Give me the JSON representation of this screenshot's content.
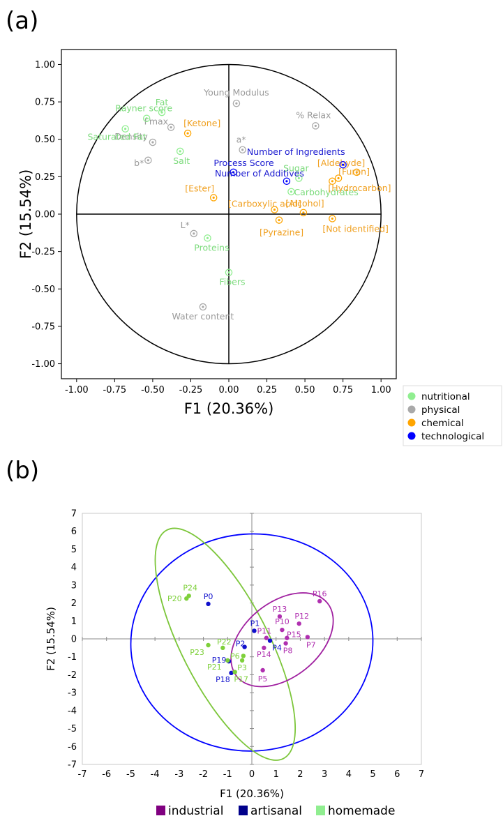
{
  "chart_data": [
    {
      "panel": "(a)",
      "type": "scatter",
      "xlabel": "F1 (20.36%)",
      "ylabel": "F2 (15.54%)",
      "xlim": [
        -1.1,
        1.1
      ],
      "ylim": [
        -1.1,
        1.1
      ],
      "xticks": [
        "-1.00",
        "-0.75",
        "-0.50",
        "-0.25",
        "0.00",
        "0.25",
        "0.50",
        "0.75",
        "1.00"
      ],
      "yticks": [
        "1.00",
        "0.75",
        "0.50",
        "0.25",
        "0.00",
        "-0.25",
        "-0.50",
        "-0.75",
        "-1.00"
      ],
      "legend_placement": "right-outside",
      "legend": [
        {
          "name": "nutritional",
          "color": "#90EE90"
        },
        {
          "name": "physical",
          "color": "#A9A9A9"
        },
        {
          "name": "chemical",
          "color": "#FFA500"
        },
        {
          "name": "technological",
          "color": "#0000FF"
        }
      ],
      "points": [
        {
          "label": "Young Modulus",
          "x": 0.05,
          "y": 0.74,
          "group": "physical"
        },
        {
          "label": "% Relax",
          "x": 0.57,
          "y": 0.59,
          "group": "physical"
        },
        {
          "label": "Fmax",
          "x": -0.38,
          "y": 0.58,
          "group": "physical"
        },
        {
          "label": "Density",
          "x": -0.5,
          "y": 0.48,
          "group": "physical"
        },
        {
          "label": "b*",
          "x": -0.53,
          "y": 0.36,
          "group": "physical"
        },
        {
          "label": "a*",
          "x": 0.09,
          "y": 0.43,
          "group": "physical"
        },
        {
          "label": "L*",
          "x": -0.23,
          "y": -0.13,
          "group": "physical"
        },
        {
          "label": "Water content",
          "x": -0.17,
          "y": -0.62,
          "group": "physical"
        },
        {
          "label": "Rayner score",
          "x": -0.54,
          "y": 0.64,
          "group": "nutritional"
        },
        {
          "label": "Fat",
          "x": -0.44,
          "y": 0.68,
          "group": "nutritional"
        },
        {
          "label": "Saturated Fat",
          "x": -0.68,
          "y": 0.57,
          "group": "nutritional"
        },
        {
          "label": "Salt",
          "x": -0.32,
          "y": 0.42,
          "group": "nutritional"
        },
        {
          "label": "Sugar",
          "x": 0.46,
          "y": 0.24,
          "group": "nutritional"
        },
        {
          "label": "Carbohydrates",
          "x": 0.41,
          "y": 0.15,
          "group": "nutritional"
        },
        {
          "label": "Proteins",
          "x": -0.14,
          "y": -0.16,
          "group": "nutritional"
        },
        {
          "label": "Fibers",
          "x": 0.0,
          "y": -0.39,
          "group": "nutritional"
        },
        {
          "label": "[Ketone]",
          "x": -0.27,
          "y": 0.54,
          "group": "chemical"
        },
        {
          "label": "[Aldehyde]",
          "x": 0.84,
          "y": 0.28,
          "group": "chemical"
        },
        {
          "label": "[Furan]",
          "x": 0.72,
          "y": 0.24,
          "group": "chemical"
        },
        {
          "label": "[Hydrocarbon]",
          "x": 0.68,
          "y": 0.22,
          "group": "chemical"
        },
        {
          "label": "[Ester]",
          "x": -0.1,
          "y": 0.11,
          "group": "chemical"
        },
        {
          "label": "[Carboxylic acid]",
          "x": 0.3,
          "y": 0.03,
          "group": "chemical"
        },
        {
          "label": "[Alcohol]",
          "x": 0.49,
          "y": 0.01,
          "group": "chemical"
        },
        {
          "label": "[Pyrazine]",
          "x": 0.33,
          "y": -0.04,
          "group": "chemical"
        },
        {
          "label": "[Not identified]",
          "x": 0.68,
          "y": -0.03,
          "group": "chemical"
        },
        {
          "label": "Process Score",
          "x": 0.03,
          "y": 0.28,
          "group": "technological"
        },
        {
          "label": "Number of Ingredients",
          "x": 0.75,
          "y": 0.33,
          "group": "technological"
        },
        {
          "label": "Number of Additives",
          "x": 0.38,
          "y": 0.22,
          "group": "technological"
        }
      ]
    },
    {
      "panel": "(b)",
      "type": "scatter",
      "xlabel": "F1 (20.36%)",
      "ylabel": "F2 (15.54%)",
      "xlim": [
        -7,
        7
      ],
      "ylim": [
        -7,
        7
      ],
      "xticks": [
        "-7",
        "-6",
        "-5",
        "-4",
        "-3",
        "-2",
        "-1",
        "0",
        "1",
        "2",
        "3",
        "4",
        "5",
        "6",
        "7"
      ],
      "yticks": [
        "7",
        "6",
        "5",
        "4",
        "3",
        "2",
        "1",
        "0",
        "-1",
        "-2",
        "-3",
        "-4",
        "-5",
        "-6",
        "-7"
      ],
      "legend_placement": "bottom",
      "legend": [
        {
          "name": "industrial",
          "color": "#800080"
        },
        {
          "name": "artisanal",
          "color": "#00008B"
        },
        {
          "name": "homemade",
          "color": "#90EE90"
        }
      ],
      "point_colors": {
        "industrial": "#B030B0",
        "artisanal": "#1010CC",
        "homemade": "#7ED03A"
      },
      "points": [
        {
          "label": "P0",
          "x": -1.8,
          "y": 1.95,
          "group": "artisanal"
        },
        {
          "label": "P1",
          "x": 0.1,
          "y": 0.45,
          "group": "artisanal"
        },
        {
          "label": "P2",
          "x": -0.3,
          "y": -0.45,
          "group": "artisanal"
        },
        {
          "label": "P4",
          "x": 0.75,
          "y": -0.1,
          "group": "artisanal"
        },
        {
          "label": "P18",
          "x": -0.85,
          "y": -1.9,
          "group": "artisanal"
        },
        {
          "label": "P19",
          "x": -0.95,
          "y": -1.25,
          "group": "artisanal"
        },
        {
          "label": "P24",
          "x": -2.6,
          "y": 2.4,
          "group": "homemade"
        },
        {
          "label": "P20",
          "x": -2.7,
          "y": 2.25,
          "group": "homemade"
        },
        {
          "label": "P22",
          "x": -1.2,
          "y": -0.5,
          "group": "homemade"
        },
        {
          "label": "P23",
          "x": -1.8,
          "y": -0.35,
          "group": "homemade"
        },
        {
          "label": "P6",
          "x": -0.35,
          "y": -0.95,
          "group": "homemade"
        },
        {
          "label": "P3",
          "x": -0.4,
          "y": -1.2,
          "group": "homemade"
        },
        {
          "label": "P21",
          "x": -1.0,
          "y": -1.2,
          "group": "homemade"
        },
        {
          "label": "P17",
          "x": -0.7,
          "y": -1.85,
          "group": "homemade"
        },
        {
          "label": "P16",
          "x": 2.8,
          "y": 2.1,
          "group": "industrial"
        },
        {
          "label": "P13",
          "x": 1.15,
          "y": 1.25,
          "group": "industrial"
        },
        {
          "label": "P12",
          "x": 1.95,
          "y": 0.85,
          "group": "industrial"
        },
        {
          "label": "P11",
          "x": 0.6,
          "y": 0.05,
          "group": "industrial"
        },
        {
          "label": "P10",
          "x": 1.25,
          "y": 0.5,
          "group": "industrial"
        },
        {
          "label": "P15",
          "x": 1.45,
          "y": 0.05,
          "group": "industrial"
        },
        {
          "label": "P7",
          "x": 2.3,
          "y": 0.1,
          "group": "industrial"
        },
        {
          "label": "P14",
          "x": 0.5,
          "y": -0.5,
          "group": "industrial"
        },
        {
          "label": "P8",
          "x": 1.4,
          "y": -0.25,
          "group": "industrial"
        },
        {
          "label": "P5",
          "x": 0.45,
          "y": -1.75,
          "group": "industrial"
        }
      ],
      "ellipses": [
        {
          "group": "artisanal",
          "color": "#0000FF",
          "cx": 0.0,
          "cy": -0.2,
          "rx": 5.0,
          "ry": 6.05,
          "angle_deg": -4
        },
        {
          "group": "homemade",
          "color": "#7CC63A",
          "cx": -1.1,
          "cy": -0.3,
          "rx": 1.8,
          "ry": 7.15,
          "angle_deg": -27
        },
        {
          "group": "industrial",
          "color": "#A020A0",
          "cx": 1.25,
          "cy": -0.05,
          "rx": 1.55,
          "ry": 3.25,
          "angle_deg": 51
        }
      ]
    }
  ]
}
